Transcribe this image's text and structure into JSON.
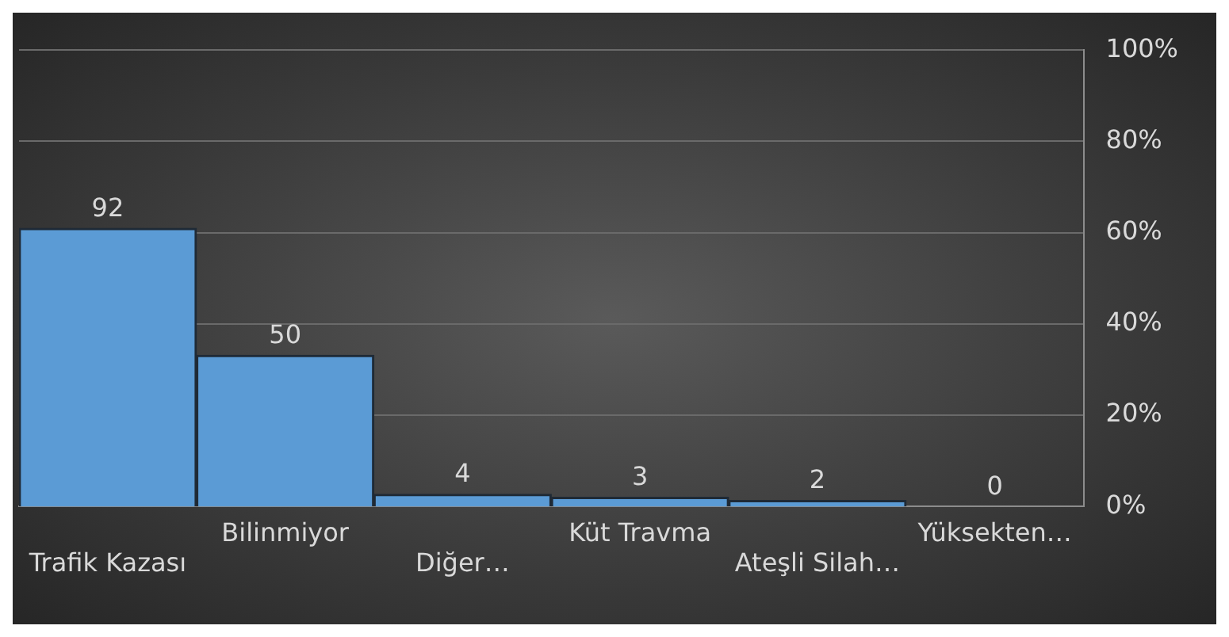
{
  "chart_data": {
    "type": "bar",
    "categories": [
      "Trafik Kazası",
      "Bilinmiyor",
      "Diğer…",
      "Küt Travma",
      "Ateşli Silah…",
      "Yüksekten…"
    ],
    "values": [
      92,
      50,
      4,
      3,
      2,
      0
    ],
    "data_labels": true,
    "color": "#5b9bd5",
    "ylim": [
      0,
      151
    ],
    "y2lim": [
      0,
      100
    ],
    "y2ticks": [
      {
        "value": 0,
        "label": "0%"
      },
      {
        "value": 20,
        "label": "20%"
      },
      {
        "value": 40,
        "label": "40%"
      },
      {
        "value": 60,
        "label": "60%"
      },
      {
        "value": 80,
        "label": "80%"
      },
      {
        "value": 100,
        "label": "100%"
      }
    ],
    "grid": "y",
    "legend": false
  }
}
